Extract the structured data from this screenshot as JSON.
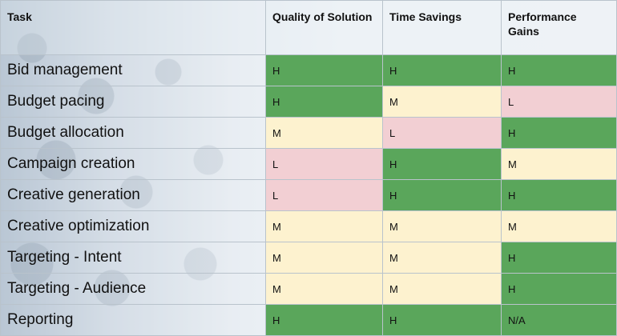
{
  "table": {
    "headers": [
      "Task",
      "Quality of Solution",
      "Time Savings",
      "Performance Gains"
    ],
    "rows": [
      {
        "task": "Bid management",
        "quality": "H",
        "time": "H",
        "performance": "H"
      },
      {
        "task": "Budget pacing",
        "quality": "H",
        "time": "M",
        "performance": "L"
      },
      {
        "task": "Budget allocation",
        "quality": "M",
        "time": "L",
        "performance": "H"
      },
      {
        "task": "Campaign creation",
        "quality": "L",
        "time": "H",
        "performance": "M"
      },
      {
        "task": "Creative generation",
        "quality": "L",
        "time": "H",
        "performance": "H"
      },
      {
        "task": "Creative optimization",
        "quality": "M",
        "time": "M",
        "performance": "M"
      },
      {
        "task": "Targeting - Intent",
        "quality": "M",
        "time": "M",
        "performance": "H"
      },
      {
        "task": "Targeting - Audience",
        "quality": "M",
        "time": "M",
        "performance": "H"
      },
      {
        "task": "Reporting",
        "quality": "H",
        "time": "H",
        "performance": "N/A"
      }
    ]
  },
  "colors": {
    "H": "#5aa65b",
    "M": "#fdf2cf",
    "L": "#f2cfd3"
  }
}
